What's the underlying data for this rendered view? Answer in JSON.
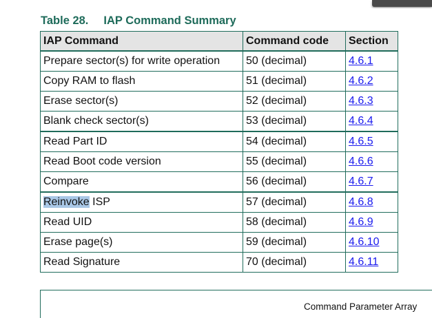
{
  "caption": {
    "number": "Table 28.",
    "title": "IAP Command Summary"
  },
  "table": {
    "headers": [
      "IAP Command",
      "Command code",
      "Section"
    ],
    "rows": [
      {
        "command": "Prepare sector(s) for write operation",
        "code": "50 (decimal)",
        "section": "4.6.1"
      },
      {
        "command": "Copy RAM to flash",
        "code": "51 (decimal)",
        "section": "4.6.2"
      },
      {
        "command": "Erase sector(s)",
        "code": "52 (decimal)",
        "section": "4.6.3"
      },
      {
        "command": "Blank check sector(s)",
        "code": "53 (decimal)",
        "section": "4.6.4"
      },
      {
        "command": "Read Part ID",
        "code": "54 (decimal)",
        "section": "4.6.5"
      },
      {
        "command": "Read Boot code version",
        "code": "55 (decimal)",
        "section": "4.6.6"
      },
      {
        "command": "Compare",
        "code": "56 (decimal)",
        "section": "4.6.7"
      },
      {
        "command_highlight": "Reinvoke",
        "command_rest": " ISP",
        "code": "57 (decimal)",
        "section": "4.6.8"
      },
      {
        "command": "Read UID",
        "code": "58 (decimal)",
        "section": "4.6.9"
      },
      {
        "command": "Erase page(s)",
        "code": "59 (decimal)",
        "section": "4.6.10"
      },
      {
        "command": "Read Signature",
        "code": "70 (decimal)",
        "section": "4.6.11"
      }
    ]
  },
  "figure_label": "Command Parameter Array",
  "colors": {
    "accent": "#1e6b5a",
    "link": "#1a1aee",
    "highlight": "#a9c7e6",
    "header_bg": "#e4e4e4"
  }
}
